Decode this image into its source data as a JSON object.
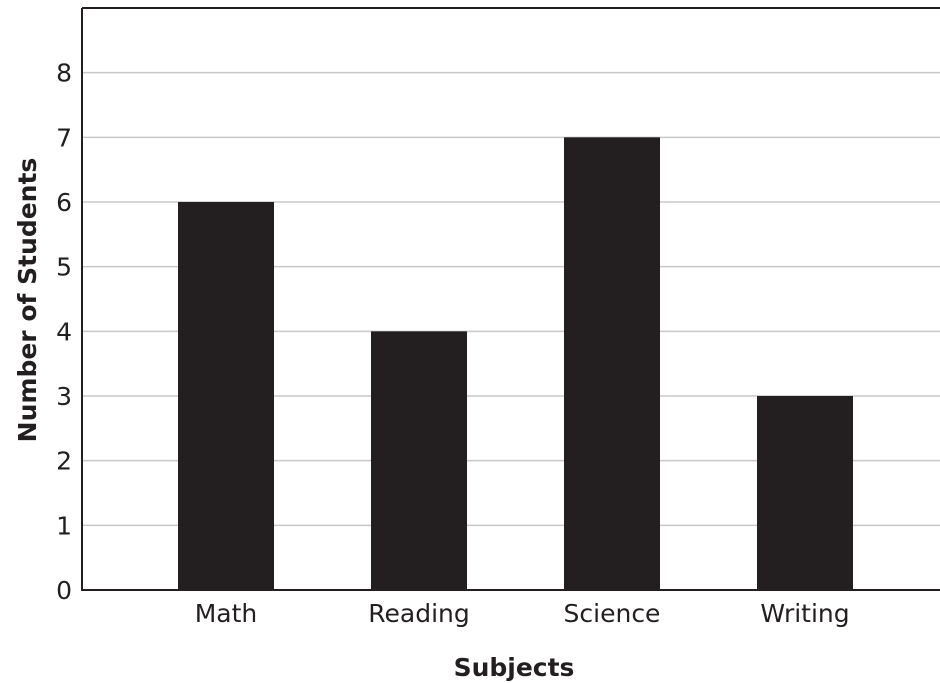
{
  "chart_data": {
    "type": "bar",
    "title": "",
    "xlabel": "Subjects",
    "ylabel": "Number of Students",
    "categories": [
      "Math",
      "Reading",
      "Science",
      "Writing"
    ],
    "values": [
      6,
      4,
      7,
      3
    ],
    "ylim": [
      0,
      9
    ],
    "yticks": [
      0,
      1,
      2,
      3,
      4,
      5,
      6,
      7,
      8
    ],
    "grid": true,
    "bar_color": "#231f20",
    "grid_color": "#c8c8c8",
    "axis_color": "#231f20"
  }
}
